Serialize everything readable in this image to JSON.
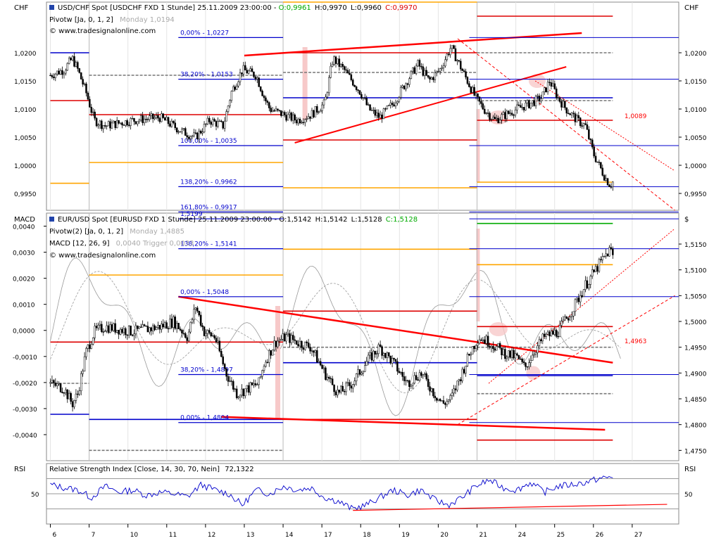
{
  "colors": {
    "background": "#ffffff",
    "grid": "#9a9a9a",
    "price": "#000000",
    "trendline": "#ff0000",
    "fibo": "#0000cc",
    "pivot_red": "#dd0000",
    "pivot_orange": "#ffa500",
    "pivot_green": "#00aa00",
    "pivot_gray": "#777777",
    "rsi": "#0000cc",
    "highlight": "#f7c9c9"
  },
  "chart_data": [
    {
      "type": "candlestick",
      "id": "usdchf",
      "header": "USD/CHF Spot [USDCHF FXD  1 Stunde] 25.11.2009 23:00:00 -",
      "ohlc": {
        "open": "O:0,9961",
        "high": "H:0,9970",
        "low": "L:0,9960",
        "close": "C:0,9970"
      },
      "indicator_labels": [
        "Pivotw [Ja, 0, 1, 2]",
        "Monday 1,0194"
      ],
      "watermark": "© www.tradesignalonline.com",
      "axis_label_left": "CHF",
      "axis_label_right": "CHF",
      "ylim": [
        0.992,
        1.029
      ],
      "yticks": [
        "1,0200",
        "1,0150",
        "1,0100",
        "1,0050",
        "1,0000",
        "0,9950"
      ],
      "ytick_values": [
        1.02,
        1.015,
        1.01,
        1.005,
        1.0,
        0.995
      ],
      "fibo_labels": [
        {
          "text": "0,00% - 1,0227",
          "value": 1.0227
        },
        {
          "text": "38,20% - 1,0153",
          "value": 1.0153
        },
        {
          "text": "100,00% - 1,0035",
          "value": 1.0035
        },
        {
          "text": "138,20% - 0,9962",
          "value": 0.9962
        },
        {
          "text": "161,80% - 0,9917",
          "value": 0.9917
        }
      ],
      "annotation": {
        "text": "1,0089",
        "value": 1.0089
      },
      "close_path": [
        [
          6,
          1.016
        ],
        [
          6.5,
          1.017
        ],
        [
          6.8,
          1.019
        ],
        [
          7,
          1.017
        ],
        [
          7.3,
          1.013
        ],
        [
          7.6,
          1.008
        ],
        [
          8,
          1.007
        ],
        [
          9,
          1.008
        ],
        [
          10,
          1.0085
        ],
        [
          10.8,
          1.006
        ],
        [
          11.3,
          1.005
        ],
        [
          11.8,
          1.008
        ],
        [
          12.3,
          1.007
        ],
        [
          12.6,
          1.013
        ],
        [
          13,
          1.017
        ],
        [
          13.5,
          1.016
        ],
        [
          13.8,
          1.012
        ],
        [
          14,
          1.01
        ],
        [
          14.5,
          1.009
        ],
        [
          15,
          1.008
        ],
        [
          15.5,
          1.009
        ],
        [
          16,
          1.011
        ],
        [
          16.3,
          1.019
        ],
        [
          16.7,
          1.017
        ],
        [
          17,
          1.015
        ],
        [
          17.3,
          1.013
        ],
        [
          17.6,
          1.01
        ],
        [
          18,
          1.0085
        ],
        [
          18.5,
          1.011
        ],
        [
          19,
          1.015
        ],
        [
          19.4,
          1.018
        ],
        [
          19.8,
          1.015
        ],
        [
          20.2,
          1.017
        ],
        [
          20.6,
          1.021
        ],
        [
          21,
          1.017
        ],
        [
          21.2,
          1.015
        ],
        [
          21.5,
          1.012
        ],
        [
          21.8,
          1.01
        ],
        [
          22.2,
          1.008
        ],
        [
          22.6,
          1.009
        ],
        [
          23,
          1.01
        ],
        [
          23.5,
          1.011
        ],
        [
          23.9,
          1.012
        ],
        [
          24.2,
          1.015
        ],
        [
          24.5,
          1.012
        ],
        [
          24.8,
          1.01
        ],
        [
          25.2,
          1.008
        ],
        [
          25.5,
          1.007
        ],
        [
          25.8,
          1.002
        ],
        [
          26,
          1.0
        ],
        [
          26.2,
          0.998
        ],
        [
          26.4,
          0.9965
        ],
        [
          26.5,
          0.997
        ]
      ]
    },
    {
      "type": "candlestick",
      "id": "eurusd",
      "header": "EUR/USD Spot [EURUSD FXD  1 Stunde] 25.11.2009 23:00:00 -",
      "ohlc": {
        "open": "O:1,5142",
        "high": "H:1,5142",
        "low": "L:1,5128",
        "close": "C:1,5128"
      },
      "indicator_labels": [
        "Pivotw(2) [Ja, 0, 1, 2]",
        "Monday 1,4885",
        "MACD [12, 26, 9]",
        "0,0040 Trigger 0,0033"
      ],
      "watermark": "© www.tradesignalonline.com",
      "axis_label_left": "MACD",
      "axis_label_right": "$",
      "ylim": [
        1.473,
        1.521
      ],
      "yticks": [
        "1,5150",
        "1,5100",
        "1,5050",
        "1,5000",
        "1,4950",
        "1,4900",
        "1,4850",
        "1,4800",
        "1,4750"
      ],
      "ytick_values": [
        1.515,
        1.51,
        1.505,
        1.5,
        1.495,
        1.49,
        1.485,
        1.48,
        1.475
      ],
      "macd_yticks": [
        "0,0040",
        "0,0030",
        "0,0020",
        "0,0010",
        "0,0000",
        "-0,0010",
        "-0,0020",
        "-0,0030",
        "-0,0040"
      ],
      "macd_ytick_values": [
        0.004,
        0.003,
        0.002,
        0.001,
        0,
        -0.001,
        -0.002,
        -0.003,
        -0.004
      ],
      "macd_ylim": [
        -0.005,
        0.0045
      ],
      "fibo_labels": [
        {
          "text": "1,5199",
          "value": 1.5199
        },
        {
          "text": "138,20% - 1,5141",
          "value": 1.5141
        },
        {
          "text": "0,00% - 1,5048",
          "value": 1.5048
        },
        {
          "text": "38,20% - 1,4897",
          "value": 1.4897
        },
        {
          "text": "0,00% - 1,4804",
          "value": 1.4804
        }
      ],
      "annotation": {
        "text": "1,4963",
        "value": 1.4963
      },
      "close_path": [
        [
          6,
          1.488
        ],
        [
          6.5,
          1.487
        ],
        [
          6.8,
          1.484
        ],
        [
          7,
          1.486
        ],
        [
          7.3,
          1.494
        ],
        [
          7.6,
          1.498
        ],
        [
          8,
          1.499
        ],
        [
          9,
          1.498
        ],
        [
          10,
          1.499
        ],
        [
          10.5,
          1.5
        ],
        [
          11,
          1.497
        ],
        [
          11.3,
          1.503
        ],
        [
          11.6,
          1.498
        ],
        [
          12,
          1.497
        ],
        [
          12.4,
          1.49
        ],
        [
          12.8,
          1.486
        ],
        [
          13.2,
          1.487
        ],
        [
          13.6,
          1.488
        ],
        [
          13.8,
          1.492
        ],
        [
          14.2,
          1.496
        ],
        [
          14.6,
          1.497
        ],
        [
          15,
          1.496
        ],
        [
          15.5,
          1.495
        ],
        [
          16,
          1.49
        ],
        [
          16.5,
          1.486
        ],
        [
          17,
          1.488
        ],
        [
          17.5,
          1.492
        ],
        [
          18,
          1.495
        ],
        [
          18.5,
          1.492
        ],
        [
          19,
          1.488
        ],
        [
          19.5,
          1.49
        ],
        [
          20,
          1.486
        ],
        [
          20.3,
          1.484
        ],
        [
          20.6,
          1.485
        ],
        [
          21,
          1.49
        ],
        [
          21.3,
          1.494
        ],
        [
          21.6,
          1.497
        ],
        [
          22,
          1.496
        ],
        [
          22.5,
          1.494
        ],
        [
          23,
          1.493
        ],
        [
          23.3,
          1.491
        ],
        [
          23.6,
          1.494
        ],
        [
          24,
          1.497
        ],
        [
          24.5,
          1.498
        ],
        [
          25,
          1.502
        ],
        [
          25.5,
          1.507
        ],
        [
          26,
          1.511
        ],
        [
          26.4,
          1.514
        ],
        [
          26.5,
          1.5128
        ]
      ]
    },
    {
      "type": "line",
      "id": "rsi",
      "header": "Relative Strength Index [Close, 14, 30, 70, Nein]",
      "value_label": "72,1322",
      "axis_label_left": "RSI",
      "axis_label_right": "RSI",
      "ylim": [
        10,
        90
      ],
      "yticks": [
        "50"
      ],
      "ytick_values": [
        50
      ],
      "band_values": [
        70,
        50,
        30
      ],
      "x": [
        6,
        6.5,
        7,
        7.5,
        8,
        8.5,
        9,
        9.5,
        10,
        10.5,
        11,
        11.5,
        12,
        12.5,
        13,
        13.5,
        14,
        14.5,
        15,
        15.5,
        16,
        16.5,
        17,
        17.5,
        18,
        18.5,
        19,
        19.5,
        20,
        20.5,
        21,
        21.5,
        22,
        22.5,
        23,
        23.5,
        24,
        24.5,
        25,
        25.5,
        26,
        26.5
      ],
      "values": [
        62,
        58,
        55,
        45,
        60,
        52,
        55,
        48,
        52,
        50,
        46,
        62,
        55,
        50,
        35,
        55,
        50,
        60,
        55,
        58,
        45,
        40,
        30,
        35,
        45,
        55,
        48,
        55,
        42,
        35,
        45,
        60,
        68,
        58,
        55,
        65,
        52,
        60,
        62,
        65,
        70,
        72
      ]
    }
  ],
  "x_axis": {
    "ticks": [
      "6",
      "7",
      "10",
      "11",
      "12",
      "13",
      "14",
      "17",
      "18",
      "19",
      "20",
      "21",
      "24",
      "25",
      "26",
      "27"
    ],
    "positions": [
      6,
      7,
      8,
      9,
      10,
      11,
      12,
      13,
      14,
      15,
      16,
      17,
      18,
      19,
      20,
      21
    ]
  }
}
